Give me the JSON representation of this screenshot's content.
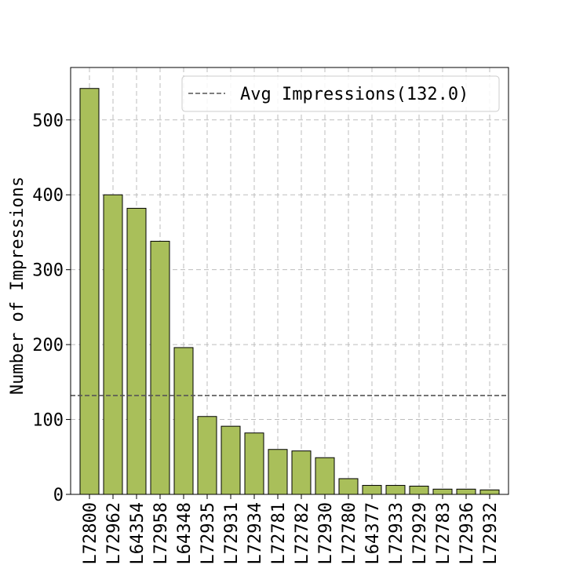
{
  "chart_data": {
    "type": "bar",
    "title": "",
    "xlabel": "",
    "ylabel": "Number of Impressions",
    "ylim": [
      0,
      570
    ],
    "yticks": [
      0,
      100,
      200,
      300,
      400,
      500
    ],
    "categories": [
      "L72800",
      "L72962",
      "L64354",
      "L72958",
      "L64348",
      "L72935",
      "L72931",
      "L72934",
      "L72781",
      "L72782",
      "L72930",
      "L72780",
      "L64377",
      "L72933",
      "L72929",
      "L72783",
      "L72936",
      "L72932"
    ],
    "values": [
      542,
      400,
      382,
      338,
      196,
      104,
      91,
      82,
      60,
      58,
      49,
      21,
      12,
      12,
      11,
      7,
      7,
      6
    ],
    "bar_color": "#a9bf5a",
    "bar_edge_color": "#000000",
    "grid": true,
    "reference_line": {
      "value": 132.0,
      "label": "Avg Impressions(132.0)",
      "color": "#555555",
      "style": "dashed"
    },
    "legend_position": "top-right"
  }
}
